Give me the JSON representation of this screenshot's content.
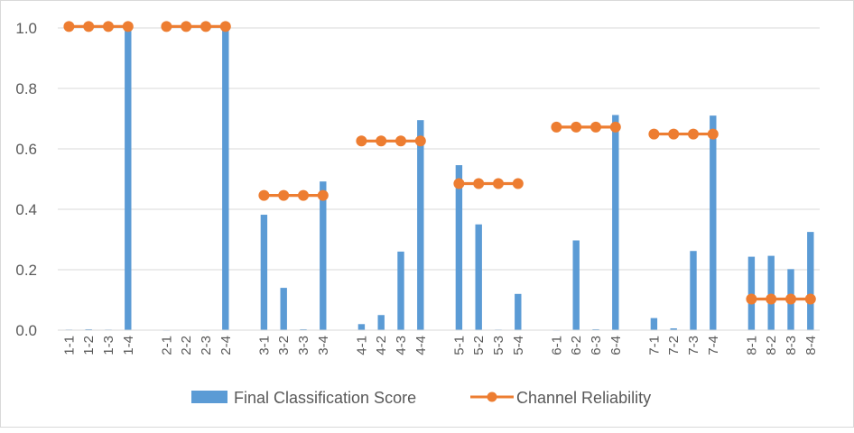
{
  "chart_data": {
    "type": "bar",
    "categories": [
      "1-1",
      "1-2",
      "1-3",
      "1-4",
      "2-1",
      "2-2",
      "2-3",
      "2-4",
      "3-1",
      "3-2",
      "3-3",
      "3-4",
      "4-1",
      "4-2",
      "4-3",
      "4-4",
      "5-1",
      "5-2",
      "5-3",
      "5-4",
      "6-1",
      "6-2",
      "6-3",
      "6-4",
      "7-1",
      "7-2",
      "7-3",
      "7-4",
      "8-1",
      "8-2",
      "8-3",
      "8-4"
    ],
    "series": [
      {
        "name": "Final Classification Score",
        "type": "bar",
        "color": "#5b9bd5",
        "values": [
          0.002,
          0.003,
          0.002,
          1.0,
          0.0,
          0.001,
          0.0,
          1.0,
          0.382,
          0.14,
          0.003,
          0.492,
          0.02,
          0.05,
          0.26,
          0.695,
          0.546,
          0.35,
          0.002,
          0.12,
          0.0,
          0.297,
          0.003,
          0.712,
          0.04,
          0.006,
          0.262,
          0.71,
          0.243,
          0.246,
          0.202,
          0.325
        ]
      },
      {
        "name": "Channel Reliability",
        "type": "line",
        "color": "#ed7d31",
        "values": [
          1.005,
          1.005,
          1.005,
          1.005,
          1.005,
          1.005,
          1.005,
          1.005,
          0.446,
          0.446,
          0.446,
          0.446,
          0.626,
          0.626,
          0.626,
          0.626,
          0.485,
          0.485,
          0.485,
          0.485,
          0.672,
          0.672,
          0.672,
          0.672,
          0.649,
          0.649,
          0.649,
          0.649,
          0.103,
          0.103,
          0.103,
          0.103
        ]
      }
    ],
    "groups": 8,
    "group_size": 4,
    "yticks": [
      "0.0",
      "0.2",
      "0.4",
      "0.6",
      "0.8",
      "1.0"
    ],
    "ylim": [
      0,
      1.0
    ],
    "title": "",
    "xlabel": "",
    "ylabel": "",
    "grid": "horizontal",
    "legend_position": "bottom"
  }
}
